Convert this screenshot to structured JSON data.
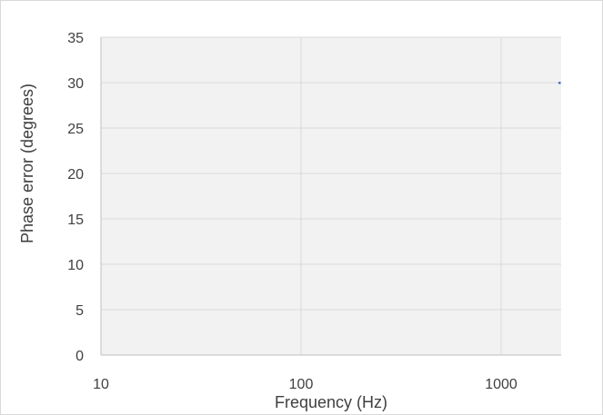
{
  "chart_data": {
    "type": "scatter",
    "title": "",
    "xlabel": "Frequency (Hz)",
    "ylabel": "Phase error (degrees)",
    "x_scale": "log",
    "xlim": [
      10,
      2000
    ],
    "ylim": [
      0,
      35
    ],
    "x_ticks": [
      10,
      100,
      1000
    ],
    "x_tick_labels": [
      "10",
      "100",
      "1000"
    ],
    "y_ticks": [
      0,
      5,
      10,
      15,
      20,
      25,
      30,
      35
    ],
    "y_tick_labels": [
      "0",
      "5",
      "10",
      "15",
      "20",
      "25",
      "30",
      "35"
    ],
    "grid": true,
    "legend": "none",
    "series": [
      {
        "color": "#4472c4",
        "points": [
          {
            "x": 2000,
            "y": 30
          }
        ]
      }
    ],
    "plot_background": "#f2f2f2",
    "grid_color": "#d9d9d9"
  }
}
